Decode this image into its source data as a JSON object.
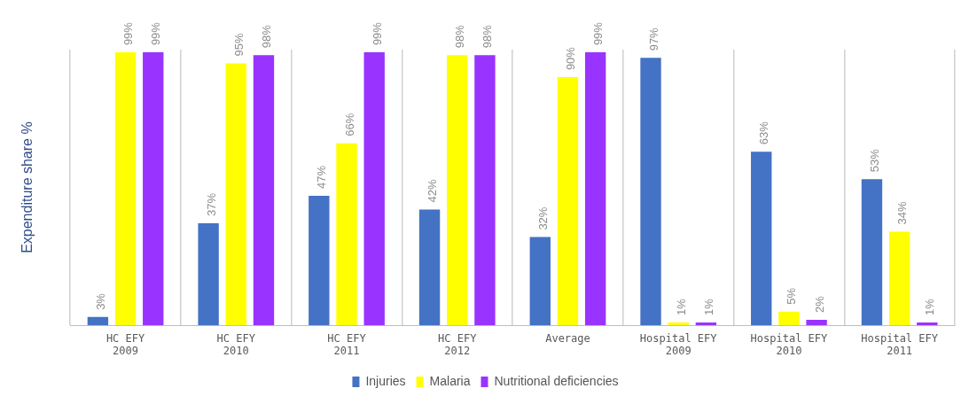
{
  "chart_data": {
    "type": "bar",
    "ylabel": "Expenditure share %",
    "categories": [
      "HC EFY 2009",
      "HC EFY 2010",
      "HC EFY 2011",
      "HC EFY 2012",
      "Average",
      "Hospital EFY 2009",
      "Hospital EFY 2010",
      "Hospital EFY 2011"
    ],
    "series": [
      {
        "name": "Injuries",
        "color": "#4472c4",
        "values": [
          3,
          37,
          47,
          42,
          32,
          97,
          63,
          53
        ],
        "value_labels": [
          "3%",
          "37%",
          "47%",
          "42%",
          "32%",
          "97%",
          "63%",
          "53%"
        ]
      },
      {
        "name": "Malaria",
        "color": "#ffff00",
        "values": [
          99,
          95,
          66,
          98,
          90,
          1,
          5,
          34
        ],
        "value_labels": [
          "99%",
          "95%",
          "66%",
          "98%",
          "90%",
          "1%",
          "5%",
          "34%"
        ]
      },
      {
        "name": "Nutritional deficiencies",
        "color": "#9933ff",
        "values": [
          99,
          98,
          99,
          98,
          99,
          1,
          2,
          1
        ],
        "value_labels": [
          "99%",
          "98%",
          "99%",
          "98%",
          "99%",
          "1%",
          "2%",
          "1%"
        ]
      }
    ],
    "grid": "x",
    "legend": "bottom",
    "tick_labels": "x"
  }
}
